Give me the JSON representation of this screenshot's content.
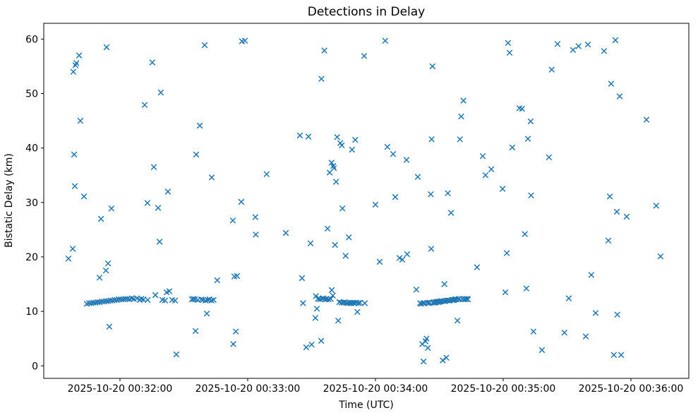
{
  "figure": {
    "background": "#ffffff",
    "spine_color": "#000000",
    "tick_color": "#000000",
    "text_color": "#000000"
  },
  "chart_data": {
    "type": "scatter",
    "title": "Detections in Delay",
    "xlabel": "Time (UTC)",
    "ylabel": "Bistatic Delay (km)",
    "marker": "x",
    "marker_color": "#1f77b4",
    "grid": false,
    "legend": "none",
    "x_unit": "seconds relative to 2025-10-20 00:32:00 UTC",
    "xlim": [
      -35.8,
      267.2
    ],
    "ylim": [
      -2.3,
      62.9
    ],
    "x_ticks": [
      {
        "value": 0,
        "label": "2025-10-20 00:32:00"
      },
      {
        "value": 60,
        "label": "2025-10-20 00:33:00"
      },
      {
        "value": 120,
        "label": "2025-10-20 00:34:00"
      },
      {
        "value": 180,
        "label": "2025-10-20 00:35:00"
      },
      {
        "value": 240,
        "label": "2025-10-20 00:36:00"
      }
    ],
    "y_ticks": [
      0,
      10,
      20,
      30,
      40,
      50,
      60
    ],
    "points": [
      [
        -24.2,
        19.7
      ],
      [
        -22.2,
        21.5
      ],
      [
        -21.9,
        54.0
      ],
      [
        -21.5,
        38.8
      ],
      [
        -21.2,
        33.0
      ],
      [
        -20.9,
        55.2
      ],
      [
        -20.5,
        55.6
      ],
      [
        -19.2,
        57.0
      ],
      [
        -18.6,
        45.0
      ],
      [
        -16.9,
        31.1
      ],
      [
        -15.6,
        11.4
      ],
      [
        -14.5,
        11.5
      ],
      [
        -13.5,
        11.5
      ],
      [
        -12.5,
        11.6
      ],
      [
        -11.5,
        11.6
      ],
      [
        -10.5,
        11.7
      ],
      [
        -9.6,
        16.2
      ],
      [
        -9.5,
        11.7
      ],
      [
        -8.9,
        27.0
      ],
      [
        -8.5,
        11.8
      ],
      [
        -7.5,
        11.8
      ],
      [
        -6.6,
        17.5
      ],
      [
        -6.5,
        11.9
      ],
      [
        -6.3,
        58.5
      ],
      [
        -5.6,
        18.8
      ],
      [
        -5.5,
        11.9
      ],
      [
        -5.0,
        7.2
      ],
      [
        -4.5,
        12.0
      ],
      [
        -4.0,
        28.9
      ],
      [
        -3.5,
        12.0
      ],
      [
        -2.5,
        12.1
      ],
      [
        -1.5,
        12.1
      ],
      [
        -0.5,
        12.2
      ],
      [
        0.5,
        12.2
      ],
      [
        1.5,
        12.2
      ],
      [
        2.5,
        12.3
      ],
      [
        3.5,
        12.3
      ],
      [
        4.5,
        12.2
      ],
      [
        5.5,
        12.4
      ],
      [
        6.5,
        12.3
      ],
      [
        8.0,
        12.4
      ],
      [
        9.3,
        12.1
      ],
      [
        10.0,
        12.3
      ],
      [
        11.0,
        12.2
      ],
      [
        11.6,
        47.9
      ],
      [
        12.9,
        29.9
      ],
      [
        13.0,
        12.1
      ],
      [
        15.2,
        55.7
      ],
      [
        15.9,
        36.5
      ],
      [
        16.6,
        13.0
      ],
      [
        17.9,
        29.0
      ],
      [
        18.6,
        22.8
      ],
      [
        19.2,
        50.2
      ],
      [
        19.9,
        12.1
      ],
      [
        21.2,
        12.0
      ],
      [
        21.9,
        13.5
      ],
      [
        22.5,
        32.0
      ],
      [
        23.2,
        13.7
      ],
      [
        24.5,
        12.1
      ],
      [
        25.9,
        12.0
      ],
      [
        26.5,
        2.1
      ],
      [
        33.8,
        12.2
      ],
      [
        34.5,
        12.3
      ],
      [
        35.2,
        12.2
      ],
      [
        35.5,
        6.4
      ],
      [
        35.8,
        38.8
      ],
      [
        36.5,
        12.1
      ],
      [
        37.5,
        44.1
      ],
      [
        38.2,
        12.2
      ],
      [
        39.0,
        12.1
      ],
      [
        39.8,
        58.9
      ],
      [
        40.2,
        12.0
      ],
      [
        40.8,
        9.6
      ],
      [
        41.2,
        12.1
      ],
      [
        42.0,
        12.2
      ],
      [
        43.0,
        12.0
      ],
      [
        43.1,
        34.6
      ],
      [
        44.0,
        12.1
      ],
      [
        45.7,
        15.7
      ],
      [
        53.0,
        26.7
      ],
      [
        53.2,
        4.0
      ],
      [
        53.7,
        16.4
      ],
      [
        54.4,
        6.3
      ],
      [
        55.0,
        16.5
      ],
      [
        57.0,
        30.1
      ],
      [
        57.3,
        59.6
      ],
      [
        58.7,
        59.7
      ],
      [
        63.6,
        27.3
      ],
      [
        63.8,
        24.1
      ],
      [
        68.9,
        35.2
      ],
      [
        77.9,
        24.4
      ],
      [
        84.5,
        42.3
      ],
      [
        85.5,
        16.1
      ],
      [
        86.0,
        11.5
      ],
      [
        87.5,
        3.4
      ],
      [
        88.5,
        42.1
      ],
      [
        89.5,
        22.5
      ],
      [
        90.0,
        3.9
      ],
      [
        91.8,
        8.8
      ],
      [
        92.0,
        12.8
      ],
      [
        92.5,
        10.5
      ],
      [
        93.0,
        12.3
      ],
      [
        93.5,
        12.4
      ],
      [
        94.0,
        12.2
      ],
      [
        94.5,
        4.6
      ],
      [
        94.6,
        52.7
      ],
      [
        95.0,
        12.3
      ],
      [
        95.5,
        12.4
      ],
      [
        96.0,
        57.9
      ],
      [
        96.5,
        12.2
      ],
      [
        97.0,
        12.3
      ],
      [
        97.5,
        25.2
      ],
      [
        98.0,
        12.2
      ],
      [
        98.5,
        35.5
      ],
      [
        99.0,
        12.3
      ],
      [
        99.4,
        37.3
      ],
      [
        99.5,
        13.9
      ],
      [
        100.0,
        12.9
      ],
      [
        100.2,
        36.7
      ],
      [
        100.5,
        36.3
      ],
      [
        101.0,
        22.2
      ],
      [
        101.5,
        33.8
      ],
      [
        102.0,
        42.0
      ],
      [
        102.5,
        8.3
      ],
      [
        103.0,
        11.7
      ],
      [
        103.5,
        40.9
      ],
      [
        104.0,
        11.6
      ],
      [
        104.2,
        40.5
      ],
      [
        104.5,
        28.9
      ],
      [
        105.0,
        11.6
      ],
      [
        105.5,
        11.7
      ],
      [
        106.0,
        20.2
      ],
      [
        106.5,
        11.6
      ],
      [
        107.0,
        11.5
      ],
      [
        107.5,
        23.6
      ],
      [
        108.0,
        11.6
      ],
      [
        108.5,
        11.5
      ],
      [
        109.0,
        39.7
      ],
      [
        109.5,
        11.6
      ],
      [
        110.0,
        11.5
      ],
      [
        110.5,
        41.5
      ],
      [
        111.0,
        11.6
      ],
      [
        111.5,
        9.9
      ],
      [
        112.0,
        11.5
      ],
      [
        112.7,
        11.6
      ],
      [
        114.7,
        56.9
      ],
      [
        115.0,
        11.5
      ],
      [
        120.0,
        29.6
      ],
      [
        122.0,
        19.1
      ],
      [
        124.6,
        59.7
      ],
      [
        125.6,
        40.2
      ],
      [
        128.3,
        38.9
      ],
      [
        129.3,
        31.0
      ],
      [
        131.3,
        19.8
      ],
      [
        132.6,
        19.5
      ],
      [
        134.6,
        37.8
      ],
      [
        134.9,
        20.5
      ],
      [
        139.2,
        14.0
      ],
      [
        139.9,
        34.7
      ],
      [
        141.0,
        11.5
      ],
      [
        141.5,
        11.4
      ],
      [
        142.0,
        4.0
      ],
      [
        142.5,
        11.5
      ],
      [
        142.6,
        0.8
      ],
      [
        143.0,
        11.5
      ],
      [
        143.5,
        4.5
      ],
      [
        144.0,
        5.0
      ],
      [
        144.3,
        11.6
      ],
      [
        144.6,
        3.3
      ],
      [
        145.0,
        11.5
      ],
      [
        145.5,
        11.6
      ],
      [
        146.0,
        31.5
      ],
      [
        146.2,
        21.5
      ],
      [
        146.4,
        41.6
      ],
      [
        146.8,
        55.0
      ],
      [
        147.0,
        11.6
      ],
      [
        147.5,
        11.7
      ],
      [
        148.0,
        11.6
      ],
      [
        148.5,
        11.7
      ],
      [
        149.0,
        11.8
      ],
      [
        149.5,
        11.7
      ],
      [
        150.0,
        11.8
      ],
      [
        150.5,
        11.8
      ],
      [
        151.0,
        11.9
      ],
      [
        151.6,
        1.0
      ],
      [
        152.0,
        11.9
      ],
      [
        152.4,
        15.0
      ],
      [
        152.8,
        11.9
      ],
      [
        153.3,
        1.5
      ],
      [
        153.6,
        12.0
      ],
      [
        154.0,
        31.7
      ],
      [
        154.4,
        12.0
      ],
      [
        155.0,
        12.0
      ],
      [
        155.5,
        28.1
      ],
      [
        156.0,
        12.1
      ],
      [
        156.5,
        12.1
      ],
      [
        157.0,
        12.1
      ],
      [
        157.5,
        12.2
      ],
      [
        158.0,
        12.2
      ],
      [
        158.5,
        8.3
      ],
      [
        159.0,
        12.2
      ],
      [
        159.4,
        12.3
      ],
      [
        159.7,
        41.6
      ],
      [
        160.3,
        45.8
      ],
      [
        160.8,
        12.3
      ],
      [
        161.3,
        48.7
      ],
      [
        161.8,
        12.3
      ],
      [
        162.3,
        12.2
      ],
      [
        163.0,
        12.3
      ],
      [
        163.4,
        12.2
      ],
      [
        167.7,
        18.1
      ],
      [
        170.4,
        38.5
      ],
      [
        171.7,
        35.0
      ],
      [
        174.4,
        36.1
      ],
      [
        179.7,
        32.5
      ],
      [
        181.0,
        13.5
      ],
      [
        181.7,
        20.7
      ],
      [
        182.3,
        59.3
      ],
      [
        183.0,
        57.5
      ],
      [
        184.3,
        40.1
      ],
      [
        187.6,
        47.3
      ],
      [
        188.9,
        47.2
      ],
      [
        190.2,
        24.2
      ],
      [
        190.9,
        14.2
      ],
      [
        191.6,
        41.7
      ],
      [
        192.9,
        44.9
      ],
      [
        193.1,
        31.3
      ],
      [
        194.2,
        6.3
      ],
      [
        198.2,
        2.9
      ],
      [
        201.5,
        38.3
      ],
      [
        202.8,
        54.4
      ],
      [
        205.5,
        59.1
      ],
      [
        208.8,
        6.1
      ],
      [
        210.8,
        12.4
      ],
      [
        212.8,
        58.0
      ],
      [
        215.4,
        58.7
      ],
      [
        218.8,
        5.4
      ],
      [
        219.8,
        59.0
      ],
      [
        221.4,
        16.7
      ],
      [
        223.4,
        9.7
      ],
      [
        227.4,
        57.8
      ],
      [
        229.4,
        23.0
      ],
      [
        230.1,
        31.1
      ],
      [
        230.7,
        51.8
      ],
      [
        232.0,
        2.0
      ],
      [
        232.7,
        59.8
      ],
      [
        233.4,
        28.3
      ],
      [
        233.6,
        9.4
      ],
      [
        234.7,
        49.5
      ],
      [
        235.4,
        2.0
      ],
      [
        238.0,
        27.4
      ],
      [
        247.3,
        45.2
      ],
      [
        251.9,
        29.4
      ],
      [
        253.9,
        20.1
      ]
    ]
  }
}
